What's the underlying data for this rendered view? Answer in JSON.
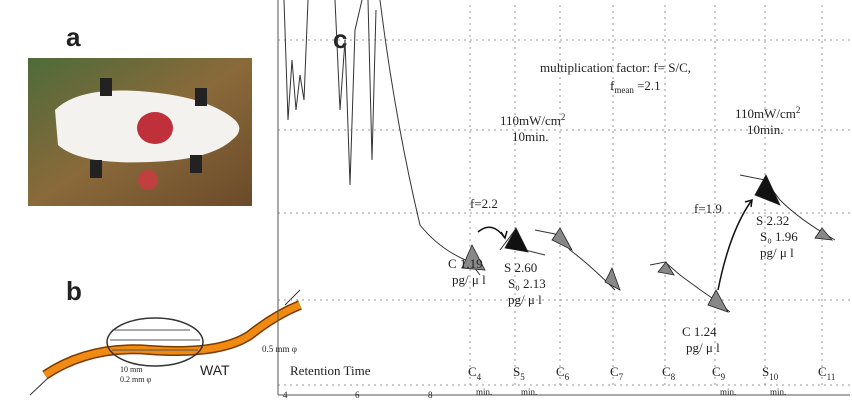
{
  "panels": {
    "a": "a",
    "b": "b",
    "c": "c"
  },
  "diagram_b": {
    "tissue": "WAT",
    "length": "10 mm",
    "inner": "0.2 mm φ",
    "outer": "0.5 mm φ"
  },
  "chromatogram": {
    "formula": "multiplication factor: f= S/C,",
    "fmean": {
      "symbol": "f",
      "sub": "mean",
      "rest": " =2.1"
    },
    "irradiation": [
      {
        "power": "110mW/cm",
        "sup": "2",
        "time": "10min."
      },
      {
        "power": "110mW/cm",
        "sup": "2",
        "time": "10min."
      }
    ],
    "factors": [
      "f=2.2",
      "f=1.9"
    ],
    "annotations": [
      {
        "lines": [
          "C 1.19",
          "pg/ μ l"
        ]
      },
      {
        "lines": [
          "S 2.60",
          "S₀ 2.13",
          "pg/ μ l"
        ]
      },
      {
        "lines": [
          "S 2.32",
          "S₀ 1.96",
          "pg/ μ l"
        ]
      },
      {
        "lines": [
          "C 1.24",
          "pg/ μ l"
        ]
      }
    ],
    "axis_label": "Retention Time",
    "time_ticks": [
      "4",
      "6",
      "8"
    ],
    "peaks": [
      {
        "letter": "C",
        "sub": "4",
        "unit": "min."
      },
      {
        "letter": "S",
        "sub": "5",
        "unit": "min."
      },
      {
        "letter": "C",
        "sub": "6"
      },
      {
        "letter": "C",
        "sub": "7"
      },
      {
        "letter": "C",
        "sub": "8"
      },
      {
        "letter": "C",
        "sub": "9",
        "unit": "min."
      },
      {
        "letter": "S",
        "sub": "10",
        "unit": "min."
      },
      {
        "letter": "C",
        "sub": "11"
      }
    ]
  }
}
